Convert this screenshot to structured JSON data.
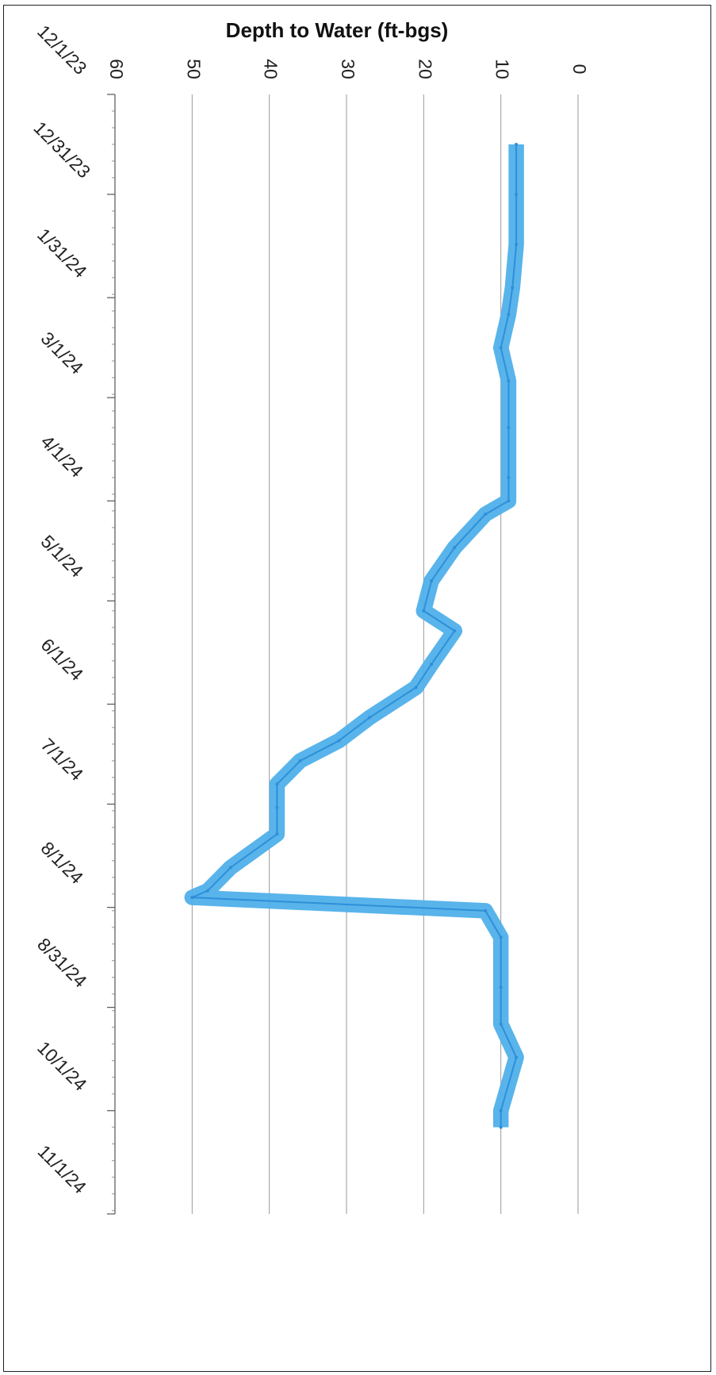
{
  "chart_data": {
    "type": "line",
    "title": "Depth to Water (ft-bgs)",
    "xlabel": "",
    "ylabel": "",
    "orientation": "rotated-90-clockwise",
    "grid": true,
    "legend": "none",
    "ylim": [
      0,
      60
    ],
    "yticks": [
      0,
      10,
      20,
      30,
      40,
      50,
      60
    ],
    "xlim": [
      "2023-12-01",
      "2024-11-01"
    ],
    "xtick_labels": [
      "12/1/23",
      "12/31/23",
      "1/31/24",
      "3/1/24",
      "4/1/24",
      "5/1/24",
      "6/1/24",
      "7/1/24",
      "8/1/24",
      "8/31/24",
      "10/1/24",
      "11/1/24"
    ],
    "xtick_dates": [
      "2023-12-01",
      "2023-12-31",
      "2024-01-31",
      "2024-03-01",
      "2024-04-01",
      "2024-05-01",
      "2024-06-01",
      "2024-07-01",
      "2024-08-01",
      "2024-08-31",
      "2024-10-01",
      "2024-11-01"
    ],
    "series": [
      {
        "color": "#4fb0ea",
        "band_width_ft": 2,
        "x": [
          "2023-12-16",
          "2023-12-31",
          "2024-01-15",
          "2024-01-28",
          "2024-02-05",
          "2024-02-15",
          "2024-02-25",
          "2024-03-10",
          "2024-03-25",
          "2024-04-01",
          "2024-04-05",
          "2024-04-15",
          "2024-04-25",
          "2024-05-04",
          "2024-05-10",
          "2024-05-20",
          "2024-05-27",
          "2024-06-05",
          "2024-06-12",
          "2024-06-18",
          "2024-06-25",
          "2024-07-02",
          "2024-07-10",
          "2024-07-20",
          "2024-07-27",
          "2024-07-29",
          "2024-08-02",
          "2024-08-10",
          "2024-08-25",
          "2024-09-05",
          "2024-09-15",
          "2024-10-01",
          "2024-10-06"
        ],
        "y": [
          8,
          8,
          8,
          8.5,
          9,
          10,
          9,
          9,
          9,
          9,
          12,
          16,
          19,
          20,
          16,
          19,
          21,
          27,
          31,
          36,
          39,
          39,
          39,
          45,
          48,
          50,
          12,
          10,
          10,
          10,
          8,
          10,
          10
        ]
      }
    ]
  }
}
